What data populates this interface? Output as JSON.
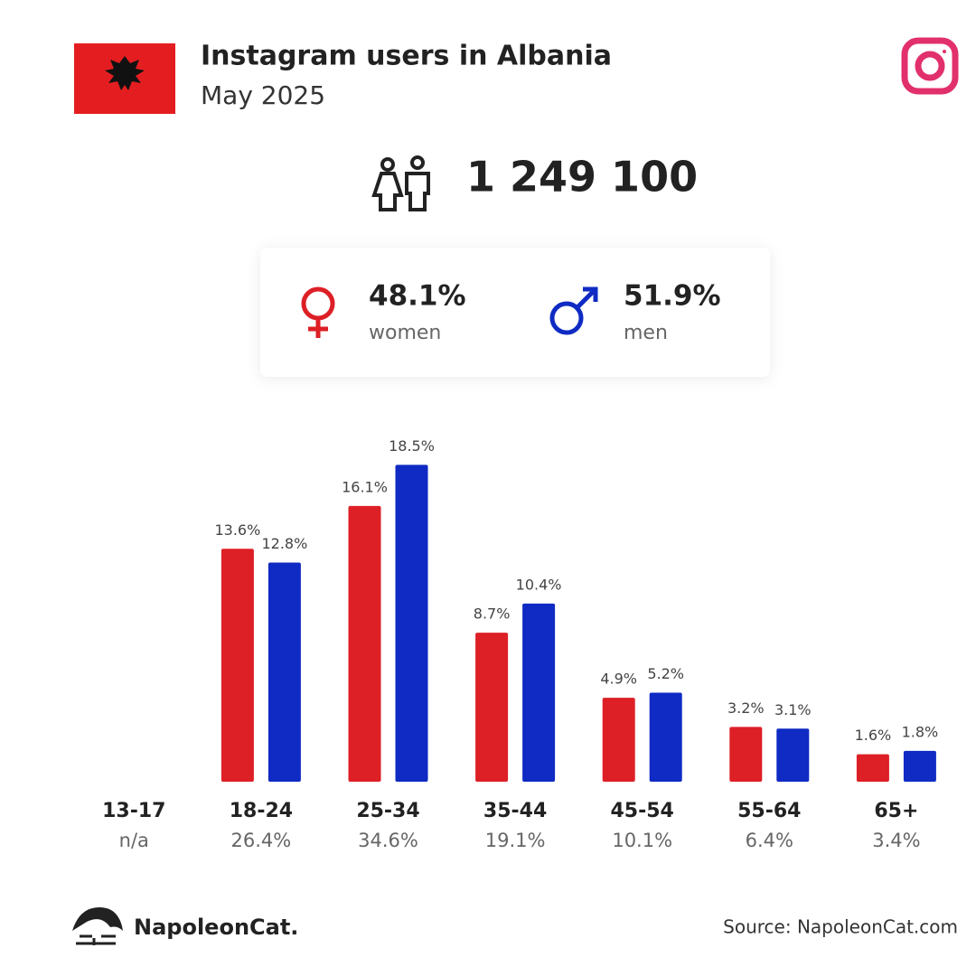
{
  "header": {
    "title": "Instagram users in Albania",
    "subtitle": "May 2025"
  },
  "total_users": "1 249 100",
  "gender": {
    "women": {
      "share": "48.1%",
      "label": "women"
    },
    "men": {
      "share": "51.9%",
      "label": "men"
    }
  },
  "chart_data": {
    "type": "bar",
    "categories": [
      "13-17",
      "18-24",
      "25-34",
      "35-44",
      "45-54",
      "55-64",
      "65+"
    ],
    "category_totals": [
      "n/a",
      "26.4%",
      "34.6%",
      "19.1%",
      "10.1%",
      "6.4%",
      "3.4%"
    ],
    "series": [
      {
        "name": "women",
        "color": "#dd1f26",
        "values": [
          null,
          13.6,
          16.1,
          8.7,
          4.9,
          3.2,
          1.6
        ],
        "value_labels": [
          null,
          "13.6%",
          "16.1%",
          "8.7%",
          "4.9%",
          "3.2%",
          "1.6%"
        ]
      },
      {
        "name": "men",
        "color": "#0f2bc3",
        "values": [
          null,
          12.8,
          18.5,
          10.4,
          5.2,
          3.1,
          1.8
        ],
        "value_labels": [
          null,
          "12.8%",
          "18.5%",
          "10.4%",
          "5.2%",
          "3.1%",
          "1.8%"
        ]
      }
    ],
    "ylim": [
      0,
      20
    ]
  },
  "footer": {
    "brand": "NapoleonCat.",
    "source": "Source: NapoleonCat.com"
  }
}
